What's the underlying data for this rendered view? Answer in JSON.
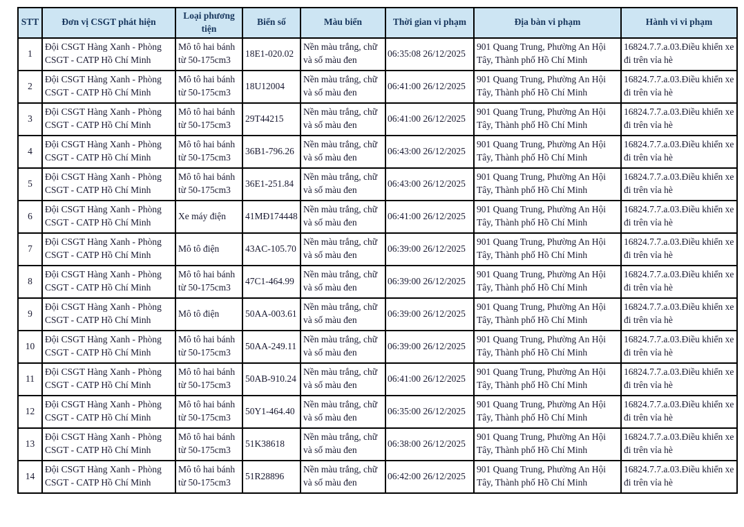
{
  "colors": {
    "header_bg": "#cde5f3",
    "header_text": "#17365d",
    "body_text": "#181830",
    "border": "#000000"
  },
  "table": {
    "columns": [
      {
        "key": "stt",
        "label": "STT"
      },
      {
        "key": "don_vi",
        "label": "Đơn vị CSGT phát hiện"
      },
      {
        "key": "loai_phuong_tien",
        "label": "Loại phương tiện"
      },
      {
        "key": "bien_so",
        "label": "Biển số"
      },
      {
        "key": "mau_bien",
        "label": "Màu biển"
      },
      {
        "key": "thoi_gian",
        "label": "Thời gian vi phạm"
      },
      {
        "key": "dia_ban",
        "label": "Địa bàn vi phạm"
      },
      {
        "key": "hanh_vi",
        "label": "Hành vi vi phạm"
      }
    ],
    "rows": [
      [
        "1",
        "Đội CSGT Hàng Xanh - Phòng CSGT - CATP Hồ Chí Minh",
        "Mô tô hai bánh từ 50-175cm3",
        "18E1-020.02",
        "Nền màu trắng, chữ và số màu đen",
        "06:35:08 26/12/2025",
        "901 Quang Trung, Phường An Hội Tây, Thành phố Hồ Chí Minh",
        "16824.7.7.a.03.Điều khiển xe đi trên vỉa hè"
      ],
      [
        "2",
        "Đội CSGT Hàng Xanh - Phòng CSGT - CATP Hồ Chí Minh",
        "Mô tô hai bánh từ 50-175cm3",
        "18U12004",
        "Nền màu trắng, chữ và số màu đen",
        "06:41:00 26/12/2025",
        "901 Quang Trung, Phường An Hội Tây, Thành phố Hồ Chí Minh",
        "16824.7.7.a.03.Điều khiển xe đi trên vỉa hè"
      ],
      [
        "3",
        "Đội CSGT Hàng Xanh - Phòng CSGT - CATP Hồ Chí Minh",
        "Mô tô hai bánh từ 50-175cm3",
        "29T44215",
        "Nền màu trắng, chữ và số màu đen",
        "06:41:00 26/12/2025",
        "901 Quang Trung, Phường An Hội Tây, Thành phố Hồ Chí Minh",
        "16824.7.7.a.03.Điều khiển xe đi trên vỉa hè"
      ],
      [
        "4",
        "Đội CSGT Hàng Xanh - Phòng CSGT - CATP Hồ Chí Minh",
        "Mô tô hai bánh từ 50-175cm3",
        "36B1-796.26",
        "Nền màu trắng, chữ và số màu đen",
        "06:43:00 26/12/2025",
        "901 Quang Trung, Phường An Hội Tây, Thành phố Hồ Chí Minh",
        "16824.7.7.a.03.Điều khiển xe đi trên vỉa hè"
      ],
      [
        "5",
        "Đội CSGT Hàng Xanh - Phòng CSGT - CATP Hồ Chí Minh",
        "Mô tô hai bánh từ 50-175cm3",
        "36E1-251.84",
        "Nền màu trắng, chữ và số màu đen",
        "06:43:00 26/12/2025",
        "901 Quang Trung, Phường An Hội Tây, Thành phố Hồ Chí Minh",
        "16824.7.7.a.03.Điều khiển xe đi trên vỉa hè"
      ],
      [
        "6",
        "Đội CSGT Hàng Xanh - Phòng CSGT - CATP Hồ Chí Minh",
        "Xe máy điện",
        "41MĐ174448",
        "Nền màu trắng, chữ và số màu đen",
        "06:41:00 26/12/2025",
        "901 Quang Trung, Phường An Hội Tây, Thành phố Hồ Chí Minh",
        "16824.7.7.a.03.Điều khiển xe đi trên vỉa hè"
      ],
      [
        "7",
        "Đội CSGT Hàng Xanh - Phòng CSGT - CATP Hồ Chí Minh",
        "Mô tô điện",
        "43AC-105.70",
        "Nền màu trắng, chữ và số màu đen",
        "06:39:00 26/12/2025",
        "901 Quang Trung, Phường An Hội Tây, Thành phố Hồ Chí Minh",
        "16824.7.7.a.03.Điều khiển xe đi trên vỉa hè"
      ],
      [
        "8",
        "Đội CSGT Hàng Xanh - Phòng CSGT - CATP Hồ Chí Minh",
        "Mô tô hai bánh từ 50-175cm3",
        "47C1-464.99",
        "Nền màu trắng, chữ và số màu đen",
        "06:39:00 26/12/2025",
        "901 Quang Trung, Phường An Hội Tây, Thành phố Hồ Chí Minh",
        "16824.7.7.a.03.Điều khiển xe đi trên vỉa hè"
      ],
      [
        "9",
        "Đội CSGT Hàng Xanh - Phòng CSGT - CATP Hồ Chí Minh",
        "Mô tô điện",
        "50AA-003.61",
        "Nền màu trắng, chữ và số màu đen",
        "06:39:00 26/12/2025",
        "901 Quang Trung, Phường An Hội Tây, Thành phố Hồ Chí Minh",
        "16824.7.7.a.03.Điều khiển xe đi trên vỉa hè"
      ],
      [
        "10",
        "Đội CSGT Hàng Xanh - Phòng CSGT - CATP Hồ Chí Minh",
        "Mô tô hai bánh từ 50-175cm3",
        "50AA-249.11",
        "Nền màu trắng, chữ và số màu đen",
        "06:39:00 26/12/2025",
        "901 Quang Trung, Phường An Hội Tây, Thành phố Hồ Chí Minh",
        "16824.7.7.a.03.Điều khiển xe đi trên vỉa hè"
      ],
      [
        "11",
        "Đội CSGT Hàng Xanh - Phòng CSGT - CATP Hồ Chí Minh",
        "Mô tô hai bánh từ 50-175cm3",
        "50AB-910.24",
        "Nền màu trắng, chữ và số màu đen",
        "06:41:00 26/12/2025",
        "901 Quang Trung, Phường An Hội Tây, Thành phố Hồ Chí Minh",
        "16824.7.7.a.03.Điều khiển xe đi trên vỉa hè"
      ],
      [
        "12",
        "Đội CSGT Hàng Xanh - Phòng CSGT - CATP Hồ Chí Minh",
        "Mô tô hai bánh từ 50-175cm3",
        "50Y1-464.40",
        "Nền màu trắng, chữ và số màu đen",
        "06:35:00 26/12/2025",
        "901 Quang Trung, Phường An Hội Tây, Thành phố Hồ Chí Minh",
        "16824.7.7.a.03.Điều khiển xe đi trên vỉa hè"
      ],
      [
        "13",
        "Đội CSGT Hàng Xanh - Phòng CSGT - CATP Hồ Chí Minh",
        "Mô tô hai bánh từ 50-175cm3",
        "51K38618",
        "Nền màu trắng, chữ và số màu đen",
        "06:38:00 26/12/2025",
        "901 Quang Trung, Phường An Hội Tây, Thành phố Hồ Chí Minh",
        "16824.7.7.a.03.Điều khiển xe đi trên vỉa hè"
      ],
      [
        "14",
        "Đội CSGT Hàng Xanh - Phòng CSGT - CATP Hồ Chí Minh",
        "Mô tô hai bánh từ 50-175cm3",
        "51R28896",
        "Nền màu trắng, chữ và số màu đen",
        "06:42:00 26/12/2025",
        "901 Quang Trung, Phường An Hội Tây, Thành phố Hồ Chí Minh",
        "16824.7.7.a.03.Điều khiển xe đi trên vỉa hè"
      ]
    ]
  }
}
